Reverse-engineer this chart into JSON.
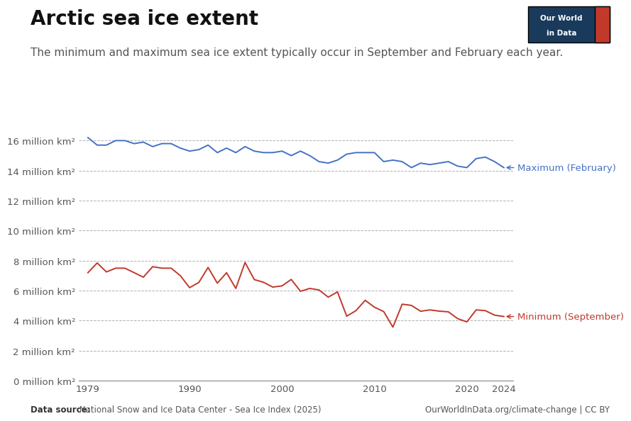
{
  "title": "Arctic sea ice extent",
  "subtitle": "The minimum and maximum sea ice extent typically occur in September and February each year.",
  "title_fontsize": 20,
  "subtitle_fontsize": 11,
  "background_color": "#ffffff",
  "max_color": "#4472c4",
  "min_color": "#c0392b",
  "grid_color": "#b0b0b0",
  "max_label": "Maximum (February)",
  "min_label": "Minimum (September)",
  "datasource_bold": "Data source:",
  "datasource_rest": " National Snow and Ice Data Center - Sea Ice Index (2025)",
  "owid_text": "OurWorldInData.org/climate-change | CC BY",
  "years": [
    1979,
    1980,
    1981,
    1982,
    1983,
    1984,
    1985,
    1986,
    1987,
    1988,
    1989,
    1990,
    1991,
    1992,
    1993,
    1994,
    1995,
    1996,
    1997,
    1998,
    1999,
    2000,
    2001,
    2002,
    2003,
    2004,
    2005,
    2006,
    2007,
    2008,
    2009,
    2010,
    2011,
    2012,
    2013,
    2014,
    2015,
    2016,
    2017,
    2018,
    2019,
    2020,
    2021,
    2022,
    2023,
    2024
  ],
  "maximum_feb": [
    16.2,
    15.7,
    15.7,
    16.0,
    16.0,
    15.8,
    15.9,
    15.6,
    15.8,
    15.8,
    15.5,
    15.3,
    15.4,
    15.7,
    15.2,
    15.5,
    15.2,
    15.6,
    15.3,
    15.2,
    15.2,
    15.3,
    15.0,
    15.3,
    15.0,
    14.6,
    14.5,
    14.7,
    15.1,
    15.2,
    15.2,
    15.2,
    14.6,
    14.7,
    14.6,
    14.2,
    14.5,
    14.4,
    14.5,
    14.6,
    14.3,
    14.2,
    14.8,
    14.9,
    14.6,
    14.2
  ],
  "minimum_sep": [
    7.2,
    7.85,
    7.25,
    7.5,
    7.5,
    7.2,
    6.9,
    7.6,
    7.5,
    7.5,
    7.0,
    6.2,
    6.55,
    7.55,
    6.5,
    7.2,
    6.15,
    7.88,
    6.74,
    6.56,
    6.24,
    6.32,
    6.75,
    5.96,
    6.15,
    6.05,
    5.57,
    5.92,
    4.3,
    4.67,
    5.36,
    4.9,
    4.61,
    3.57,
    5.1,
    5.02,
    4.63,
    4.72,
    4.64,
    4.59,
    4.14,
    3.92,
    4.72,
    4.67,
    4.37,
    4.28
  ],
  "ylim": [
    0,
    17
  ],
  "yticks": [
    0,
    2,
    4,
    6,
    8,
    10,
    12,
    14,
    16
  ],
  "ytick_labels": [
    "0 million km²",
    "2 million km²",
    "4 million km²",
    "6 million km²",
    "8 million km²",
    "10 million km²",
    "12 million km²",
    "14 million km²",
    "16 million km²"
  ],
  "xlim": [
    1978,
    2025
  ],
  "xticks": [
    1979,
    1990,
    2000,
    2010,
    2020,
    2024
  ],
  "logo_bg": "#1a3a5c",
  "logo_bar_color": "#c0392b"
}
